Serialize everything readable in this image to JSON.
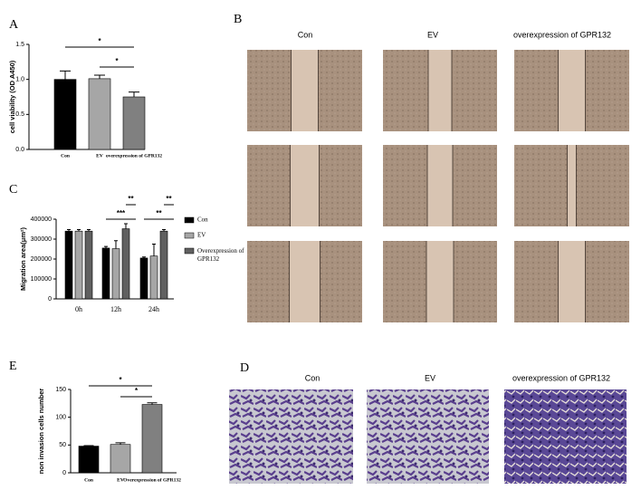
{
  "chart_data": [
    {
      "type": "bar",
      "panel": "A",
      "y_label": "cell viability (OD A450)",
      "categories": [
        "Con",
        "EV",
        "overexpression of GPR132"
      ],
      "values": [
        1.0,
        1.01,
        0.75
      ],
      "errors": [
        0.12,
        0.05,
        0.07
      ],
      "colors": [
        "#000000",
        "#a6a6a6",
        "#808080"
      ],
      "ylim": [
        0,
        1.5
      ],
      "yticks": [
        {
          "value": 0,
          "label": "0.0"
        },
        {
          "value": 0.5,
          "label": "0.5"
        },
        {
          "value": 1,
          "label": "1.0"
        },
        {
          "value": 1.5,
          "label": "1.5"
        }
      ],
      "annotations": [
        "*",
        "*"
      ]
    },
    {
      "type": "grouped-bar",
      "panel": "C",
      "y_label": "Migration area(μm²)",
      "categories": [
        "0h",
        "12h",
        "24h"
      ],
      "series": [
        {
          "name": "Con",
          "color": "#000000",
          "values": [
            340000,
            255000,
            205000
          ],
          "errors": [
            8000,
            8000,
            5000
          ]
        },
        {
          "name": "EV",
          "color": "#a6a6a6",
          "values": [
            340000,
            252000,
            215000
          ],
          "errors": [
            8000,
            40000,
            60000
          ]
        },
        {
          "name": "Overexpression of GPR132",
          "color": "#606060",
          "values": [
            340000,
            352000,
            340000
          ],
          "errors": [
            8000,
            25000,
            8000
          ]
        }
      ],
      "ylim": [
        0,
        400000
      ],
      "yticks": [
        0,
        100000,
        200000,
        300000,
        400000
      ],
      "annotations": [
        "**",
        "***",
        "**",
        "**"
      ]
    },
    {
      "type": "bar",
      "panel": "E",
      "y_label": "non invasion cells number",
      "categories": [
        "Con",
        "EV",
        "Overexpression of GPR132"
      ],
      "values": [
        48,
        51,
        123
      ],
      "errors": [
        1,
        3,
        3
      ],
      "colors": [
        "#000000",
        "#a6a6a6",
        "#808080"
      ],
      "ylim": [
        0,
        150
      ],
      "yticks": [
        0,
        50,
        100,
        150
      ],
      "annotations": [
        "*",
        "*"
      ]
    }
  ],
  "figures": [
    {
      "panel": "B",
      "columns": [
        "Con",
        "EV",
        "overexpression of GPR132"
      ]
    },
    {
      "panel": "D",
      "columns": [
        "Con",
        "EV",
        "overexpression of GPR132"
      ]
    }
  ]
}
